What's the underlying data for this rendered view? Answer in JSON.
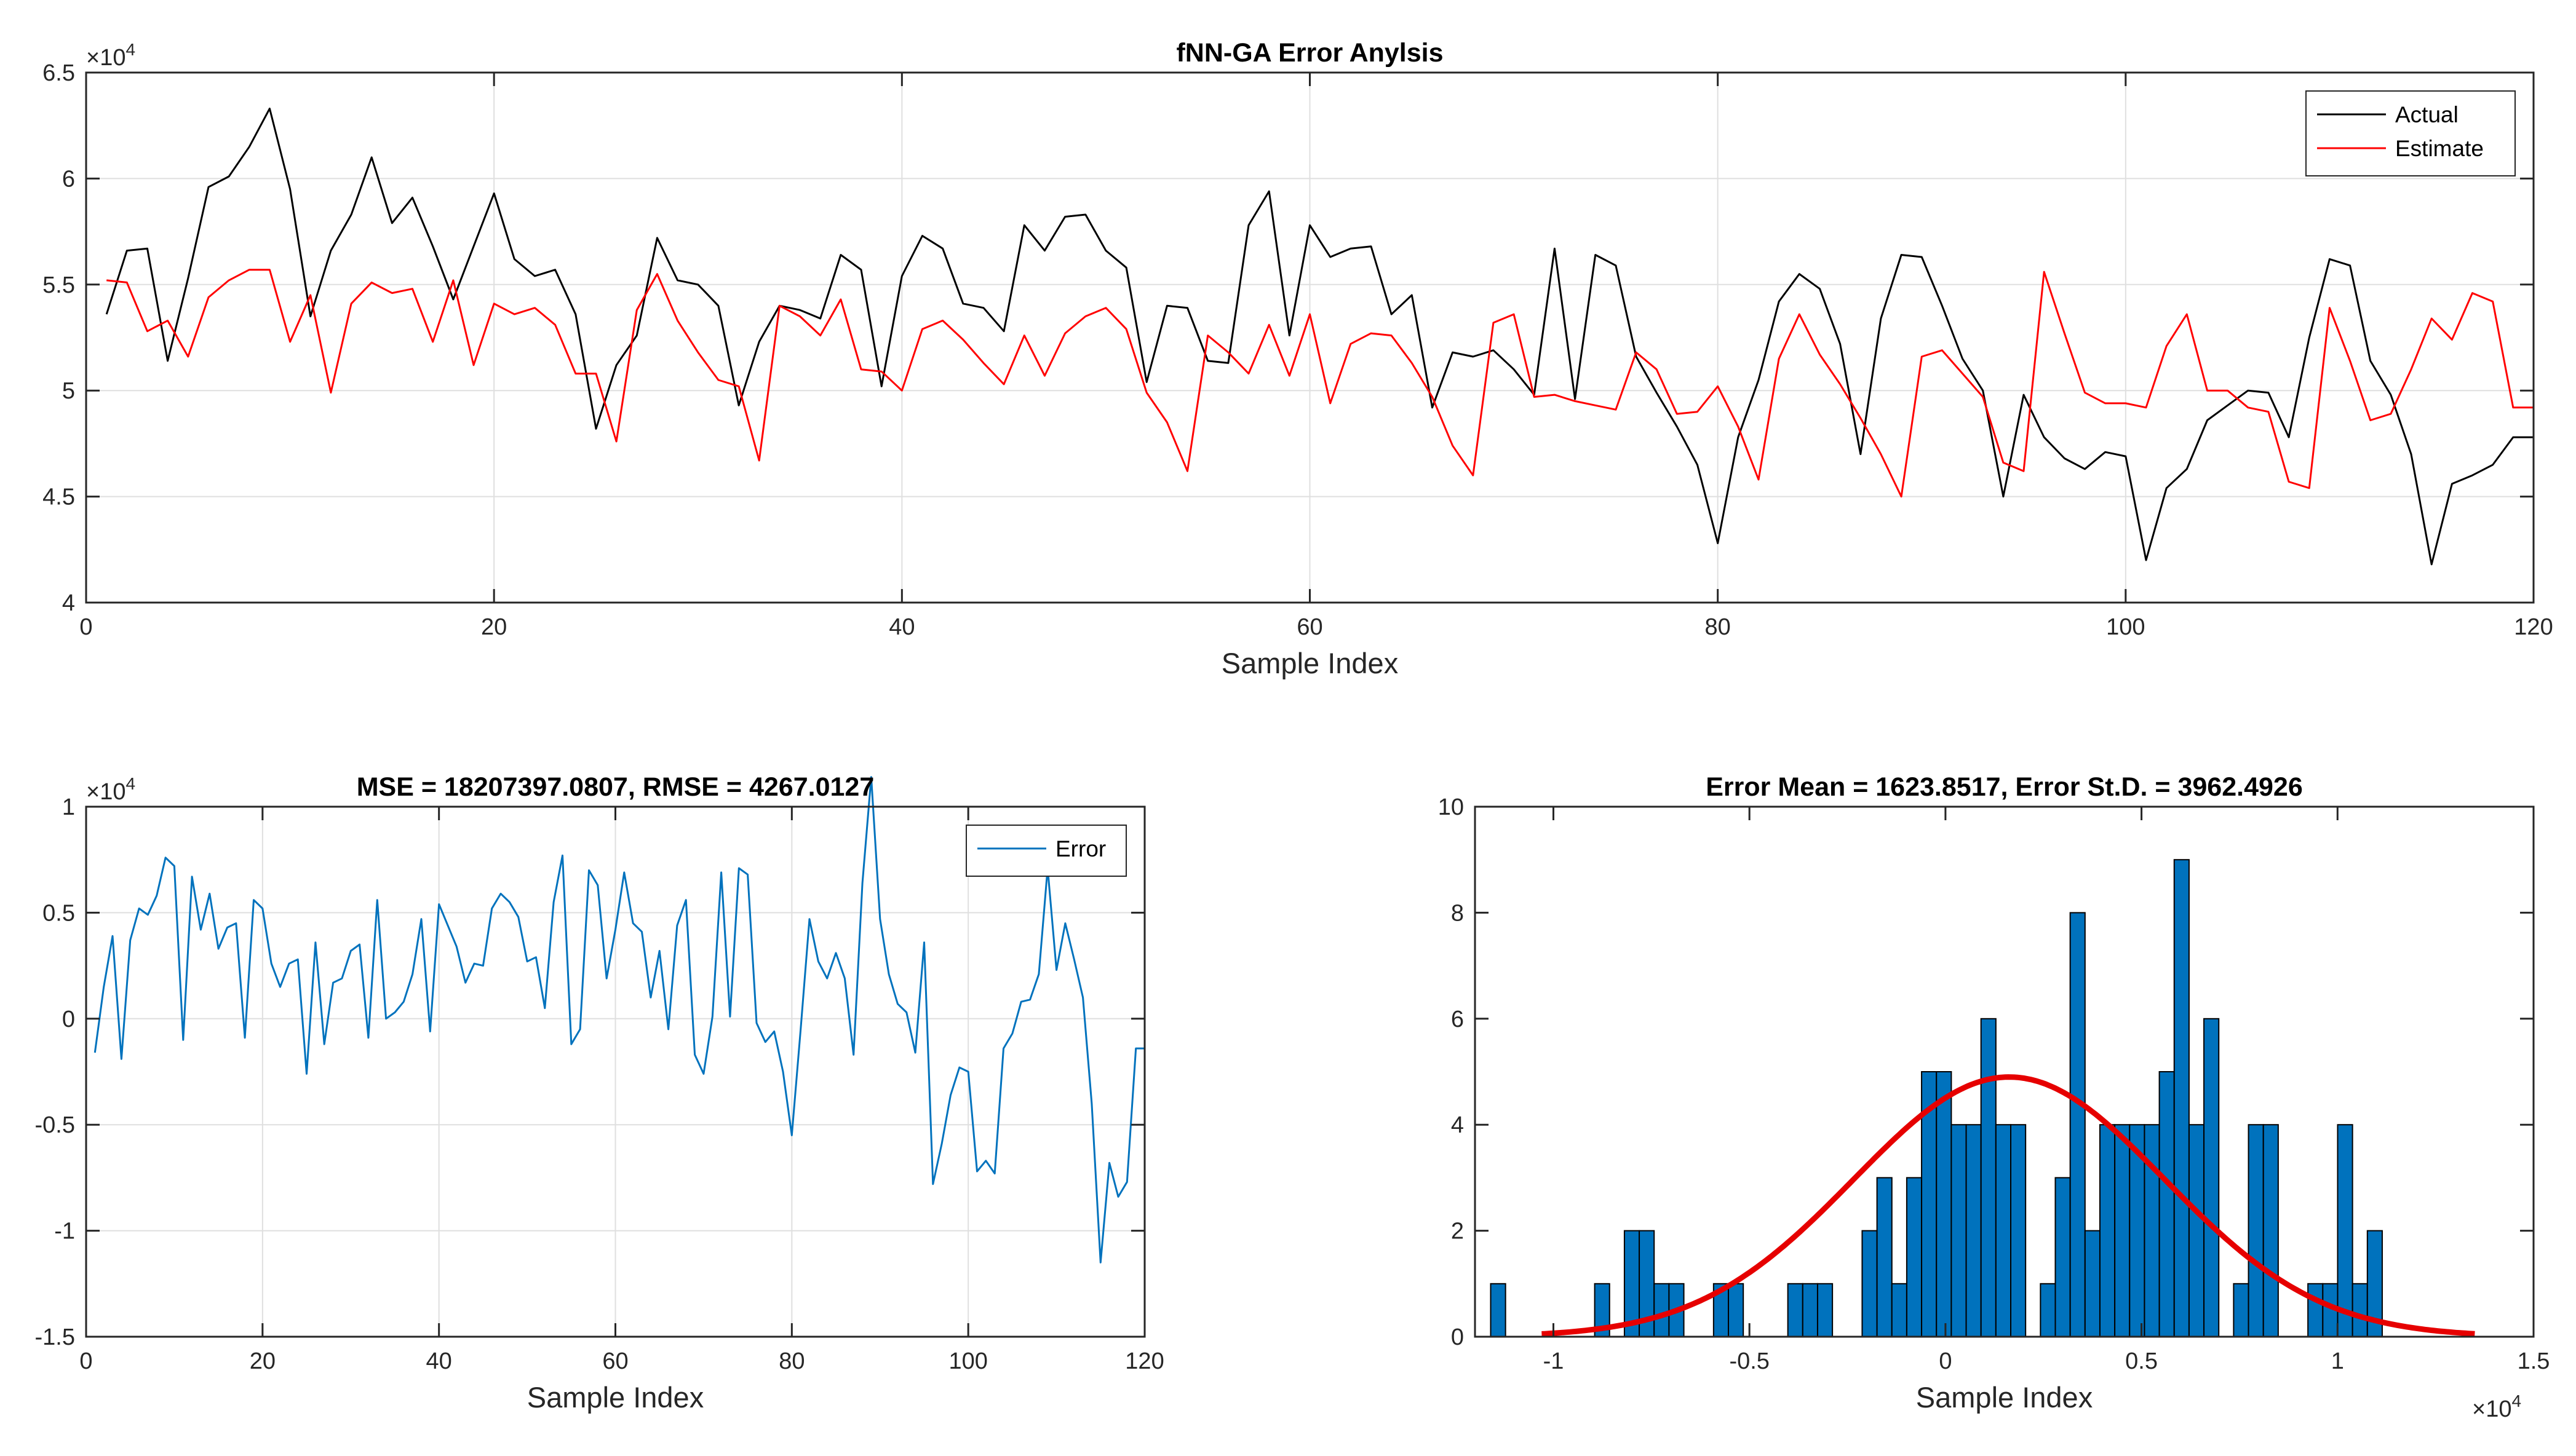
{
  "chart_data": [
    {
      "type": "line",
      "title": "fNN-GA Error Anylsis",
      "xlabel": "Sample Index",
      "ylabel": "",
      "xlim": [
        0,
        120
      ],
      "ylim": [
        40000,
        65000
      ],
      "xticks": [
        0,
        20,
        40,
        60,
        80,
        100,
        120
      ],
      "xtick_labels": [
        "0",
        "20",
        "40",
        "60",
        "80",
        "100",
        "120"
      ],
      "yticks": [
        40000,
        45000,
        50000,
        55000,
        60000,
        65000
      ],
      "ytick_labels": [
        "4",
        "4.5",
        "5",
        "5.5",
        "6",
        "6.5"
      ],
      "y_exponent_base": "×10",
      "y_exponent_power": "4",
      "grid": true,
      "legend_position": "top-right",
      "series": [
        {
          "name": "Actual",
          "color": "#000000",
          "x": [
            1,
            2,
            3,
            4,
            5,
            6,
            7,
            8,
            9,
            10,
            11,
            12,
            13,
            14,
            15,
            16,
            17,
            18,
            19,
            20,
            21,
            22,
            23,
            24,
            25,
            26,
            27,
            28,
            29,
            30,
            31,
            32,
            33,
            34,
            35,
            36,
            37,
            38,
            39,
            40,
            41,
            42,
            43,
            44,
            45,
            46,
            47,
            48,
            49,
            50,
            51,
            52,
            53,
            54,
            55,
            56,
            57,
            58,
            59,
            60,
            61,
            62,
            63,
            64,
            65,
            66,
            67,
            68,
            69,
            70,
            71,
            72,
            73,
            74,
            75,
            76,
            77,
            78,
            79,
            80,
            81,
            82,
            83,
            84,
            85,
            86,
            87,
            88,
            89,
            90,
            91,
            92,
            93,
            94,
            95,
            96,
            97,
            98,
            99,
            100,
            101,
            102,
            103,
            104,
            105,
            106,
            107,
            108,
            109,
            110,
            111,
            112,
            113,
            114,
            115,
            116,
            117,
            118,
            119,
            120
          ],
          "values": [
            53600,
            56600,
            56700,
            51400,
            55300,
            59600,
            60100,
            61500,
            63300,
            59500,
            53500,
            56600,
            58300,
            61000,
            57900,
            59100,
            56800,
            54300,
            56800,
            59300,
            56200,
            55400,
            55700,
            53600,
            48200,
            51200,
            52600,
            57200,
            55200,
            55000,
            54000,
            49300,
            52300,
            54000,
            53800,
            53400,
            56400,
            55700,
            50200,
            55400,
            57300,
            56700,
            54100,
            53900,
            52800,
            57800,
            56600,
            58200,
            58300,
            56600,
            55800,
            50400,
            54000,
            53900,
            51400,
            51300,
            57800,
            59400,
            52600,
            57800,
            56300,
            56700,
            56800,
            53600,
            54500,
            49200,
            51800,
            51600,
            51900,
            51000,
            49800,
            56700,
            49600,
            56400,
            55900,
            51600,
            49900,
            48300,
            46500,
            42800,
            47800,
            50500,
            54200,
            55500,
            54800,
            52200,
            47000,
            53400,
            56400,
            56300,
            54000,
            51500,
            50000,
            45000,
            49800,
            47800,
            46800,
            46300,
            47100,
            46900,
            42000,
            45400,
            46300,
            48600,
            49300,
            50000,
            49900,
            47800,
            52500,
            56200,
            55900,
            51400,
            49800,
            47000,
            41800,
            45600,
            46000,
            46500,
            47800,
            47800
          ]
        },
        {
          "name": "Estimate",
          "color": "#ff0000",
          "x": [
            1,
            2,
            3,
            4,
            5,
            6,
            7,
            8,
            9,
            10,
            11,
            12,
            13,
            14,
            15,
            16,
            17,
            18,
            19,
            20,
            21,
            22,
            23,
            24,
            25,
            26,
            27,
            28,
            29,
            30,
            31,
            32,
            33,
            34,
            35,
            36,
            37,
            38,
            39,
            40,
            41,
            42,
            43,
            44,
            45,
            46,
            47,
            48,
            49,
            50,
            51,
            52,
            53,
            54,
            55,
            56,
            57,
            58,
            59,
            60,
            61,
            62,
            63,
            64,
            65,
            66,
            67,
            68,
            69,
            70,
            71,
            72,
            73,
            74,
            75,
            76,
            77,
            78,
            79,
            80,
            81,
            82,
            83,
            84,
            85,
            86,
            87,
            88,
            89,
            90,
            91,
            92,
            93,
            94,
            95,
            96,
            97,
            98,
            99,
            100,
            101,
            102,
            103,
            104,
            105,
            106,
            107,
            108,
            109,
            110,
            111,
            112,
            113,
            114,
            115,
            116,
            117,
            118,
            119,
            120
          ],
          "values": [
            55200,
            55100,
            52800,
            53300,
            51600,
            54400,
            55200,
            55700,
            55700,
            52300,
            54500,
            49900,
            54100,
            55100,
            54600,
            54800,
            52300,
            55200,
            51200,
            54100,
            53600,
            53900,
            53100,
            50800,
            50800,
            47600,
            53800,
            55500,
            53300,
            51800,
            50500,
            50200,
            46700,
            54000,
            53500,
            52600,
            54300,
            51000,
            50900,
            50000,
            52900,
            53300,
            52400,
            51300,
            50300,
            52600,
            50700,
            52700,
            53500,
            53900,
            52900,
            49900,
            48500,
            46200,
            52600,
            51800,
            50800,
            53100,
            50700,
            53600,
            49400,
            52200,
            52700,
            52600,
            51300,
            49700,
            47400,
            46000,
            53200,
            53600,
            49700,
            49800,
            49500,
            49300,
            49100,
            51800,
            51000,
            48900,
            49000,
            50200,
            48300,
            45800,
            51500,
            53600,
            51700,
            50300,
            48700,
            47000,
            45000,
            51600,
            51900,
            50800,
            49700,
            46600,
            46200,
            55600,
            52700,
            49900,
            49400,
            49400,
            49200,
            52100,
            53600,
            50000,
            50000,
            49200,
            49000,
            45700,
            45400,
            53900,
            51400,
            48600,
            48900,
            51000,
            53400,
            52400,
            54600,
            54200,
            49200,
            49200
          ]
        }
      ]
    },
    {
      "type": "line",
      "title": "MSE = 18207397.0807, RMSE = 4267.0127",
      "xlabel": "Sample Index",
      "ylabel": "",
      "xlim": [
        0,
        120
      ],
      "ylim": [
        -15000,
        10000
      ],
      "xticks": [
        0,
        20,
        40,
        60,
        80,
        100,
        120
      ],
      "xtick_labels": [
        "0",
        "20",
        "40",
        "60",
        "80",
        "100",
        "120"
      ],
      "yticks": [
        -15000,
        -10000,
        -5000,
        0,
        5000,
        10000
      ],
      "ytick_labels": [
        "-1.5",
        "-1",
        "-0.5",
        "0",
        "0.5",
        "1"
      ],
      "y_exponent_base": "×10",
      "y_exponent_power": "4",
      "grid": true,
      "legend_position": "top-right",
      "series": [
        {
          "name": "Error",
          "color": "#0072bd",
          "x": [
            1,
            2,
            3,
            4,
            5,
            6,
            7,
            8,
            9,
            10,
            11,
            12,
            13,
            14,
            15,
            16,
            17,
            18,
            19,
            20,
            21,
            22,
            23,
            24,
            25,
            26,
            27,
            28,
            29,
            30,
            31,
            32,
            33,
            34,
            35,
            36,
            37,
            38,
            39,
            40,
            41,
            42,
            43,
            44,
            45,
            46,
            47,
            48,
            49,
            50,
            51,
            52,
            53,
            54,
            55,
            56,
            57,
            58,
            59,
            60,
            61,
            62,
            63,
            64,
            65,
            66,
            67,
            68,
            69,
            70,
            71,
            72,
            73,
            74,
            75,
            76,
            77,
            78,
            79,
            80,
            81,
            82,
            83,
            84,
            85,
            86,
            87,
            88,
            89,
            90,
            91,
            92,
            93,
            94,
            95,
            96,
            97,
            98,
            99,
            100,
            101,
            102,
            103,
            104,
            105,
            106,
            107,
            108,
            109,
            110,
            111,
            112,
            113,
            114,
            115,
            116,
            117,
            118,
            119,
            120
          ],
          "values": [
            -1600,
            1500,
            3900,
            -1900,
            3700,
            5200,
            4900,
            5800,
            7600,
            7200,
            -1000,
            6700,
            4200,
            5900,
            3300,
            4300,
            4500,
            -900,
            5600,
            5200,
            2600,
            1500,
            2600,
            2800,
            -2600,
            3600,
            -1200,
            1700,
            1900,
            3200,
            3500,
            -900,
            5600,
            0,
            300,
            800,
            2100,
            4700,
            -600,
            5400,
            4400,
            3400,
            1700,
            2600,
            2500,
            5200,
            5900,
            5500,
            4800,
            2700,
            2900,
            500,
            5500,
            7700,
            -1200,
            -500,
            7000,
            6300,
            1900,
            4200,
            6900,
            4500,
            4100,
            1000,
            3200,
            -500,
            4400,
            5600,
            -1700,
            -2600,
            100,
            6900,
            100,
            7100,
            6800,
            -200,
            -1100,
            -600,
            -2500,
            -5500,
            -500,
            4700,
            2700,
            1900,
            3100,
            1900,
            -1700,
            6400,
            11400,
            4700,
            2100,
            700,
            300,
            -1600,
            3600,
            -7800,
            -5900,
            -3600,
            -2300,
            -2500,
            -7200,
            -6700,
            -7300,
            -1400,
            -700,
            800,
            900,
            2100,
            7100,
            2300,
            4500,
            2800,
            1000,
            -4000,
            -11500,
            -6800,
            -8400,
            -7700,
            -1400,
            -1400
          ]
        }
      ]
    },
    {
      "type": "bar",
      "title": "Error Mean = 1623.8517, Error St.D. = 3962.4926",
      "xlabel": "Sample Index",
      "ylabel": "",
      "xlim": [
        -12000,
        15000
      ],
      "ylim": [
        0,
        10
      ],
      "xticks": [
        -10000,
        -5000,
        0,
        5000,
        10000,
        15000
      ],
      "xtick_labels": [
        "-1",
        "-0.5",
        "0",
        "0.5",
        "1",
        "1.5"
      ],
      "yticks": [
        0,
        2,
        4,
        6,
        8,
        10
      ],
      "ytick_labels": [
        "0",
        "2",
        "4",
        "6",
        "8",
        "10"
      ],
      "x_exponent_base": "×10",
      "x_exponent_power": "4",
      "grid": false,
      "histogram": {
        "color": "#0072bd",
        "bin_start": -11600,
        "bin_width": 379,
        "counts": [
          1,
          0,
          0,
          0,
          0,
          0,
          0,
          1,
          0,
          2,
          2,
          1,
          1,
          0,
          0,
          1,
          1,
          0,
          0,
          0,
          1,
          1,
          1,
          0,
          0,
          2,
          3,
          1,
          3,
          5,
          5,
          4,
          4,
          6,
          4,
          4,
          0,
          1,
          3,
          8,
          2,
          4,
          4,
          4,
          4,
          5,
          9,
          4,
          6,
          0,
          1,
          4,
          4,
          0,
          0,
          1,
          1,
          4,
          1,
          2
        ],
        "count_labels": []
      },
      "fit_curve": {
        "color": "#e60000",
        "mean": 1623.8517,
        "std": 3962.4926,
        "peak": 4.9,
        "x_range": [
          -10300,
          13500
        ]
      }
    }
  ]
}
